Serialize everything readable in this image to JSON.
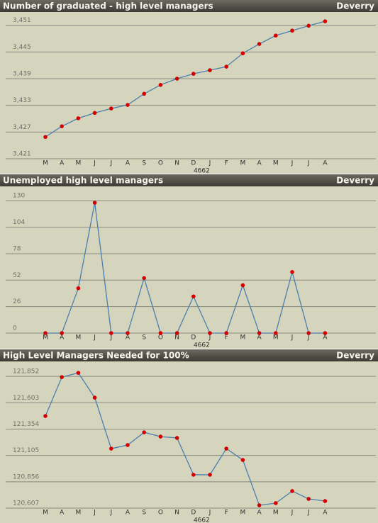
{
  "chart_data": [
    {
      "type": "line",
      "title": "Number of graduated - high level managers",
      "subtitle": "Deverry",
      "categories": [
        "M",
        "A",
        "M",
        "J",
        "J",
        "A",
        "S",
        "O",
        "N",
        "D",
        "J",
        "F",
        "M",
        "A",
        "M",
        "J",
        "J",
        "A"
      ],
      "x_label": "4662",
      "values": [
        3425.9,
        3428.3,
        3430.1,
        3431.3,
        3432.3,
        3433.1,
        3435.6,
        3437.6,
        3439.0,
        3440.1,
        3440.9,
        3441.7,
        3444.7,
        3446.8,
        3448.7,
        3449.8,
        3450.9,
        3451.9
      ],
      "color": "#4a7fae",
      "marker_color": "#d40000",
      "ylim": [
        3421,
        3453.5
      ],
      "yticks": [
        {
          "value": 3421,
          "label": "3,421"
        },
        {
          "value": 3427,
          "label": "3,427"
        },
        {
          "value": 3433,
          "label": "3,433"
        },
        {
          "value": 3439,
          "label": "3,439"
        },
        {
          "value": 3445,
          "label": "3,445"
        },
        {
          "value": 3451,
          "label": "3,451"
        }
      ],
      "grid": true
    },
    {
      "type": "line",
      "title": "Unemployed high level managers",
      "subtitle": "Deverry",
      "categories": [
        "M",
        "A",
        "M",
        "J",
        "J",
        "A",
        "S",
        "O",
        "N",
        "D",
        "J",
        "F",
        "M",
        "A",
        "M",
        "J",
        "J",
        "A"
      ],
      "x_label": "4662",
      "values": [
        0,
        0,
        44,
        128,
        0,
        0,
        54,
        0,
        0,
        36,
        0,
        0,
        47,
        0,
        0,
        60,
        0,
        0
      ],
      "color": "#4a7fae",
      "marker_color": "#d40000",
      "ylim": [
        0,
        142
      ],
      "yticks": [
        0,
        26,
        52,
        78,
        104,
        130
      ],
      "grid": true
    },
    {
      "type": "line",
      "title": "High Level Managers Needed for 100%",
      "subtitle": "Deverry",
      "categories": [
        "M",
        "A",
        "M",
        "J",
        "J",
        "A",
        "S",
        "O",
        "N",
        "D",
        "J",
        "F",
        "M",
        "A",
        "M",
        "J",
        "J",
        "A"
      ],
      "x_label": "4662",
      "values": [
        121477,
        121845,
        121885,
        121651,
        121169,
        121203,
        121323,
        121283,
        121270,
        120922,
        120922,
        121169,
        121062,
        120634,
        120654,
        120768,
        120694,
        120674
      ],
      "color": "#4a7fae",
      "marker_color": "#d40000",
      "ylim": [
        120607,
        121973
      ],
      "yticks": [
        {
          "value": 120607,
          "label": "120,607"
        },
        {
          "value": 120856,
          "label": "120,856"
        },
        {
          "value": 121105,
          "label": "121,105"
        },
        {
          "value": 121354,
          "label": "121,354"
        },
        {
          "value": 121603,
          "label": "121,603"
        },
        {
          "value": 121852,
          "label": "121,852"
        }
      ],
      "grid": true
    }
  ]
}
